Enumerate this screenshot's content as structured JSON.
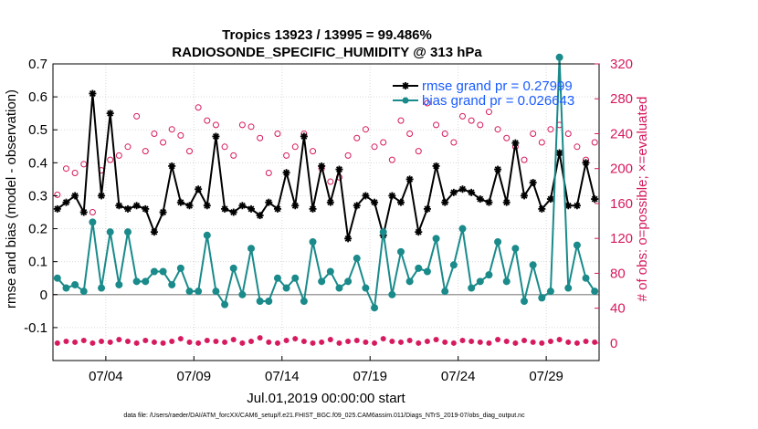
{
  "chart_data": {
    "type": "line",
    "title_line1": "Tropics 13923 / 13995 = 99.486%",
    "title_line2": "RADIOSONDE_SPECIFIC_HUMIDITY @ 313 hPa",
    "xlabel": "Jul.01,2019 00:00:00 start",
    "ylabel_left": "rmse and bias (model - observation)",
    "ylabel_right": "# of obs: o=possible; ×=evaluated",
    "footnote": "data file: /Users/raeder/DAI/ATM_forcXX/CAM6_setup/f.e21.FHIST_BGC.f09_025.CAM6assim.011/Diags_NTrS_2019-07/obs_diag_output.nc",
    "xlim": [
      1,
      32
    ],
    "ylim_left": [
      -0.2,
      0.7
    ],
    "ylim_right": [
      -20,
      320
    ],
    "x_ticks": [
      4,
      9,
      14,
      19,
      24,
      29
    ],
    "x_tick_labels": [
      "07/04",
      "07/09",
      "07/14",
      "07/19",
      "07/24",
      "07/29"
    ],
    "y_ticks_left": [
      -0.1,
      0,
      0.1,
      0.2,
      0.3,
      0.4,
      0.5,
      0.6,
      0.7
    ],
    "y_tick_labels_left": [
      "-0.1",
      "0",
      "0.1",
      "0.2",
      "0.3",
      "0.4",
      "0.5",
      "0.6",
      "0.7"
    ],
    "y_ticks_right": [
      0,
      40,
      80,
      120,
      160,
      200,
      240,
      280,
      320
    ],
    "y_tick_labels_right": [
      "0",
      "40",
      "80",
      "120",
      "160",
      "200",
      "240",
      "280",
      "320"
    ],
    "grid": true,
    "legend_position": "top-right",
    "x": [
      1.25,
      1.75,
      2.25,
      2.75,
      3.25,
      3.75,
      4.25,
      4.75,
      5.25,
      5.75,
      6.25,
      6.75,
      7.25,
      7.75,
      8.25,
      8.75,
      9.25,
      9.75,
      10.25,
      10.75,
      11.25,
      11.75,
      12.25,
      12.75,
      13.25,
      13.75,
      14.25,
      14.75,
      15.25,
      15.75,
      16.25,
      16.75,
      17.25,
      17.75,
      18.25,
      18.75,
      19.25,
      19.75,
      20.25,
      20.75,
      21.25,
      21.75,
      22.25,
      22.75,
      23.25,
      23.75,
      24.25,
      24.75,
      25.25,
      25.75,
      26.25,
      26.75,
      27.25,
      27.75,
      28.25,
      28.75,
      29.25,
      29.75,
      30.25,
      30.75,
      31.25,
      31.75
    ],
    "series": [
      {
        "name": "rmse",
        "legend_label": "rmse grand pr = 0.27999",
        "axis": "left",
        "color": "#000000",
        "values": [
          0.26,
          0.28,
          0.3,
          0.25,
          0.61,
          0.3,
          0.55,
          0.27,
          0.26,
          0.27,
          0.26,
          0.19,
          0.25,
          0.39,
          0.28,
          0.27,
          0.32,
          0.27,
          0.48,
          0.26,
          0.25,
          0.27,
          0.26,
          0.24,
          0.28,
          0.26,
          0.37,
          0.27,
          0.48,
          0.26,
          0.39,
          0.28,
          0.38,
          0.17,
          0.27,
          0.3,
          0.28,
          0.18,
          0.3,
          0.28,
          0.35,
          0.19,
          0.26,
          0.39,
          0.28,
          0.31,
          0.32,
          0.31,
          0.29,
          0.28,
          0.38,
          0.28,
          0.46,
          0.3,
          0.34,
          0.26,
          0.29,
          0.43,
          0.27,
          0.27,
          0.4,
          0.29
        ]
      },
      {
        "name": "bias",
        "legend_label": "bias grand pr = 0.026643",
        "axis": "left",
        "color": "#1a8a8a",
        "values": [
          0.05,
          0.02,
          0.03,
          0.01,
          0.22,
          0.02,
          0.19,
          0.03,
          0.19,
          0.04,
          0.04,
          0.07,
          0.07,
          0.03,
          0.08,
          0.01,
          0.01,
          0.18,
          0.01,
          -0.03,
          0.08,
          0.0,
          0.14,
          -0.02,
          -0.02,
          0.05,
          0.02,
          0.05,
          -0.02,
          0.16,
          0.04,
          0.07,
          0.02,
          0.04,
          0.11,
          0.02,
          -0.04,
          0.19,
          0.0,
          0.13,
          0.04,
          0.08,
          0.07,
          0.17,
          0.01,
          0.09,
          0.2,
          0.02,
          0.04,
          0.06,
          0.16,
          0.04,
          0.14,
          -0.02,
          0.09,
          -0.01,
          0.01,
          0.72,
          0.02,
          0.15,
          0.05,
          0.01
        ]
      },
      {
        "name": "obs possible",
        "legend_label": "",
        "axis": "right",
        "color": "#d6195e",
        "marker": "circle",
        "values": [
          170,
          200,
          195,
          205,
          150,
          198,
          210,
          215,
          225,
          260,
          220,
          240,
          230,
          245,
          238,
          220,
          270,
          255,
          250,
          225,
          215,
          250,
          248,
          235,
          195,
          240,
          215,
          225,
          240,
          220,
          200,
          185,
          190,
          215,
          235,
          245,
          225,
          230,
          210,
          255,
          240,
          220,
          275,
          250,
          240,
          230,
          260,
          255,
          250,
          265,
          245,
          235,
          225,
          210,
          240,
          230,
          245,
          250,
          240,
          225,
          210,
          230
        ]
      },
      {
        "name": "obs evaluated",
        "legend_label": "",
        "axis": "right",
        "color": "#d6195e",
        "marker": "asterisk",
        "values": [
          0,
          2,
          1,
          3,
          0,
          2,
          1,
          4,
          2,
          0,
          3,
          1,
          0,
          2,
          5,
          1,
          0,
          3,
          2,
          1,
          4,
          0,
          2,
          6,
          1,
          0,
          3,
          5,
          2,
          0,
          1,
          4,
          0,
          2,
          3,
          1,
          0,
          5,
          2,
          1,
          3,
          0,
          2,
          4,
          1,
          0,
          3,
          2,
          1,
          0,
          4,
          2,
          0,
          3,
          1,
          0,
          2,
          4,
          1,
          0,
          2,
          1
        ]
      }
    ]
  }
}
